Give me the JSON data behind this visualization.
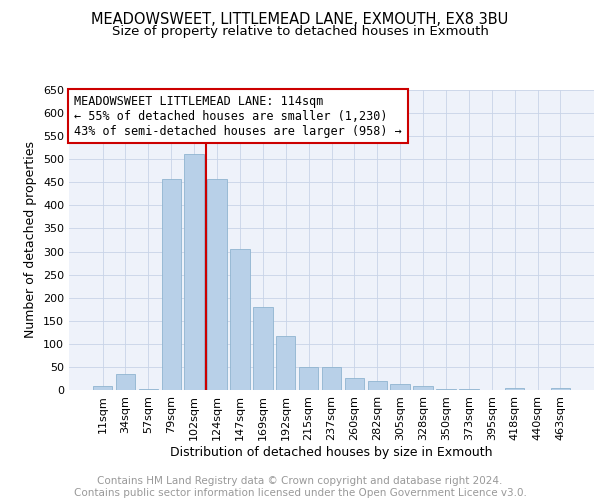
{
  "title_line1": "MEADOWSWEET, LITTLEMEAD LANE, EXMOUTH, EX8 3BU",
  "title_line2": "Size of property relative to detached houses in Exmouth",
  "xlabel": "Distribution of detached houses by size in Exmouth",
  "ylabel": "Number of detached properties",
  "categories": [
    "11sqm",
    "34sqm",
    "57sqm",
    "79sqm",
    "102sqm",
    "124sqm",
    "147sqm",
    "169sqm",
    "192sqm",
    "215sqm",
    "237sqm",
    "260sqm",
    "282sqm",
    "305sqm",
    "328sqm",
    "350sqm",
    "373sqm",
    "395sqm",
    "418sqm",
    "440sqm",
    "463sqm"
  ],
  "values": [
    8,
    35,
    2,
    458,
    512,
    458,
    305,
    180,
    118,
    50,
    50,
    27,
    20,
    13,
    8,
    3,
    2,
    0,
    5,
    0,
    5
  ],
  "bar_color": "#b8d0e8",
  "bar_edge_color": "#90b4d0",
  "vline_color": "#cc0000",
  "vline_position": 4.5,
  "annotation_text": "MEADOWSWEET LITTLEMEAD LANE: 114sqm\n← 55% of detached houses are smaller (1,230)\n43% of semi-detached houses are larger (958) →",
  "annotation_box_facecolor": "#ffffff",
  "annotation_box_edgecolor": "#cc0000",
  "ylim": [
    0,
    650
  ],
  "yticks": [
    0,
    50,
    100,
    150,
    200,
    250,
    300,
    350,
    400,
    450,
    500,
    550,
    600,
    650
  ],
  "background_color": "#eef2fa",
  "grid_color": "#c8d4e8",
  "footer_text": "Contains HM Land Registry data © Crown copyright and database right 2024.\nContains public sector information licensed under the Open Government Licence v3.0.",
  "title_fontsize": 10.5,
  "subtitle_fontsize": 9.5,
  "axis_label_fontsize": 9,
  "tick_fontsize": 8,
  "annotation_fontsize": 8.5,
  "footer_fontsize": 7.5
}
